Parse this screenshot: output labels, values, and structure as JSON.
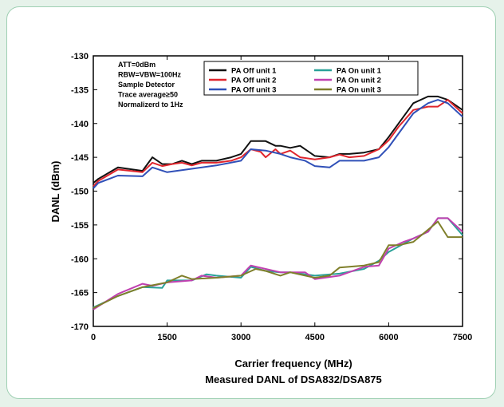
{
  "chart_data": {
    "type": "line",
    "title": "",
    "subtitle": "Measured DANL of DSA832/DSA875",
    "xlabel": "Carrier frequency (MHz)",
    "ylabel": "DANL (dBm)",
    "xlim": [
      0,
      7500
    ],
    "ylim": [
      -170,
      -130
    ],
    "xticks": [
      0,
      1500,
      3000,
      4500,
      6000,
      7500
    ],
    "yticks": [
      -130,
      -135,
      -140,
      -145,
      -150,
      -155,
      -160,
      -165,
      -170
    ],
    "grid": false,
    "legend_position": "top-right",
    "annotations": [
      "ATT=0dBm",
      "RBW=VBW=100Hz",
      "Sample Detector",
      "Trace average≥50",
      "Normalizerd to 1Hz"
    ],
    "series": [
      {
        "name": "PA Off  unit 1",
        "color": "#111111",
        "x": [
          0,
          100,
          500,
          1000,
          1200,
          1400,
          1600,
          1800,
          2000,
          2200,
          2500,
          2800,
          3000,
          3200,
          3500,
          3700,
          3800,
          4000,
          4200,
          4500,
          4800,
          5000,
          5200,
          5500,
          5800,
          6000,
          6200,
          6500,
          6800,
          7000,
          7200,
          7500
        ],
        "y": [
          -148.8,
          -148.2,
          -146.5,
          -147.0,
          -145.0,
          -146.0,
          -146.0,
          -145.5,
          -146.0,
          -145.5,
          -145.5,
          -145.0,
          -144.5,
          -142.6,
          -142.6,
          -143.3,
          -143.3,
          -143.6,
          -143.3,
          -144.8,
          -145.0,
          -144.5,
          -144.5,
          -144.3,
          -143.8,
          -142.0,
          -140.0,
          -137.0,
          -136.0,
          -136.0,
          -136.5,
          -138.0
        ]
      },
      {
        "name": "PA Off  unit 2",
        "color": "#e0252d",
        "x": [
          0,
          100,
          500,
          1000,
          1200,
          1400,
          1600,
          1800,
          2000,
          2200,
          2500,
          2800,
          3000,
          3200,
          3400,
          3500,
          3700,
          3800,
          4000,
          4200,
          4500,
          4800,
          5000,
          5200,
          5500,
          5800,
          6000,
          6200,
          6500,
          6800,
          7000,
          7200,
          7500
        ],
        "y": [
          -149.3,
          -148.5,
          -146.8,
          -147.2,
          -145.8,
          -146.3,
          -146.0,
          -145.8,
          -146.2,
          -145.8,
          -145.8,
          -145.5,
          -145.0,
          -143.8,
          -144.2,
          -145.0,
          -143.8,
          -144.5,
          -144.0,
          -145.0,
          -145.3,
          -145.0,
          -144.6,
          -145.0,
          -144.8,
          -143.8,
          -142.5,
          -140.5,
          -138.0,
          -137.5,
          -137.5,
          -136.5,
          -138.5
        ]
      },
      {
        "name": "PA Off  unit 3",
        "color": "#3050b8",
        "x": [
          0,
          100,
          500,
          1000,
          1200,
          1500,
          2000,
          2500,
          3000,
          3200,
          3500,
          3800,
          4000,
          4300,
          4500,
          4800,
          5000,
          5500,
          5800,
          6000,
          6200,
          6500,
          6800,
          7000,
          7200,
          7500
        ],
        "y": [
          -149.6,
          -148.8,
          -147.7,
          -147.8,
          -146.5,
          -147.2,
          -146.7,
          -146.2,
          -145.5,
          -143.8,
          -144.0,
          -144.5,
          -145.0,
          -145.5,
          -146.3,
          -146.5,
          -145.5,
          -145.5,
          -145.0,
          -143.5,
          -141.5,
          -138.5,
          -137.0,
          -136.5,
          -137.0,
          -139.0
        ]
      },
      {
        "name": "PA On  unit 1",
        "color": "#2aa198",
        "x": [
          0,
          500,
          1000,
          1400,
          1500,
          2000,
          2300,
          2500,
          3000,
          3200,
          3500,
          3800,
          4000,
          4500,
          5000,
          5500,
          5800,
          6000,
          6300,
          6500,
          6800,
          7000,
          7200,
          7500
        ],
        "y": [
          -167.2,
          -165.5,
          -164.2,
          -164.3,
          -163.2,
          -163.2,
          -162.3,
          -162.5,
          -162.8,
          -161.2,
          -161.8,
          -162.0,
          -162.0,
          -162.5,
          -162.2,
          -161.5,
          -160.3,
          -159.0,
          -157.8,
          -157.0,
          -156.0,
          -154.0,
          -154.0,
          -156.5
        ]
      },
      {
        "name": "PA On  unit 2",
        "color": "#c040b0",
        "x": [
          0,
          500,
          1000,
          1200,
          1500,
          2000,
          2200,
          2500,
          3000,
          3200,
          3500,
          3800,
          4000,
          4300,
          4500,
          5000,
          5500,
          5800,
          6000,
          6300,
          6500,
          6800,
          7000,
          7200,
          7500
        ],
        "y": [
          -167.5,
          -165.2,
          -163.7,
          -164.0,
          -163.5,
          -163.2,
          -162.5,
          -162.8,
          -162.5,
          -161.0,
          -161.5,
          -162.0,
          -162.0,
          -162.0,
          -163.0,
          -162.5,
          -161.2,
          -161.0,
          -158.5,
          -157.5,
          -157.0,
          -156.0,
          -154.0,
          -154.0,
          -156.0
        ]
      },
      {
        "name": "PA On  unit 3",
        "color": "#7f7f2a",
        "x": [
          0,
          500,
          1000,
          1500,
          1800,
          2000,
          2500,
          3000,
          3300,
          3500,
          3800,
          4000,
          4500,
          4800,
          5000,
          5500,
          5800,
          6000,
          6200,
          6500,
          7000,
          7200,
          7500
        ],
        "y": [
          -167.3,
          -165.5,
          -164.2,
          -163.5,
          -162.5,
          -163.0,
          -162.8,
          -162.5,
          -161.5,
          -161.8,
          -162.5,
          -162.0,
          -162.8,
          -162.5,
          -161.3,
          -161.0,
          -160.5,
          -158.0,
          -158.0,
          -157.5,
          -154.5,
          -156.8,
          -156.8
        ]
      }
    ]
  }
}
